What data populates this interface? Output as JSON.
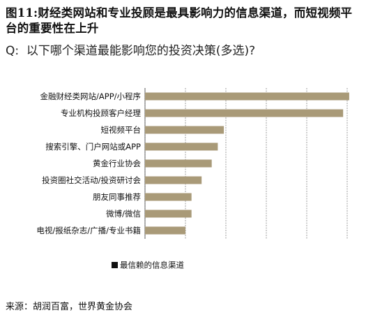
{
  "title": "图11:财经类网站和专业投顾是最具影响力的信息渠道，而短视频平台的重要性在上升",
  "question": "Q:  以下哪个渠道最能影响您的投资决策(多选)?",
  "source": "来源：胡润百富，世界黄金协会",
  "bar_color": "#a99a78",
  "chart_data": {
    "type": "bar",
    "orientation": "horizontal",
    "title": "",
    "xlabel": "",
    "ylabel": "",
    "categories": [
      "金融财经类网站/APP/小程序",
      "专业机构投顾客户经理",
      "短视频平台",
      "搜索引擎、门户网站或APP",
      "黄金行业协会",
      "投资圈社交活动/投资研讨会",
      "朋友同事推荐",
      "微博/微信",
      "电视/报纸杂志/广播/专业书籍"
    ],
    "series": [
      {
        "name": "最信赖的信息渠道",
        "values": [
          0.505,
          0.49,
          0.195,
          0.18,
          0.165,
          0.14,
          0.115,
          0.115,
          0.1
        ]
      }
    ],
    "xlim": [
      0,
      0.5
    ],
    "grid": true,
    "legend": "bottom-left"
  }
}
